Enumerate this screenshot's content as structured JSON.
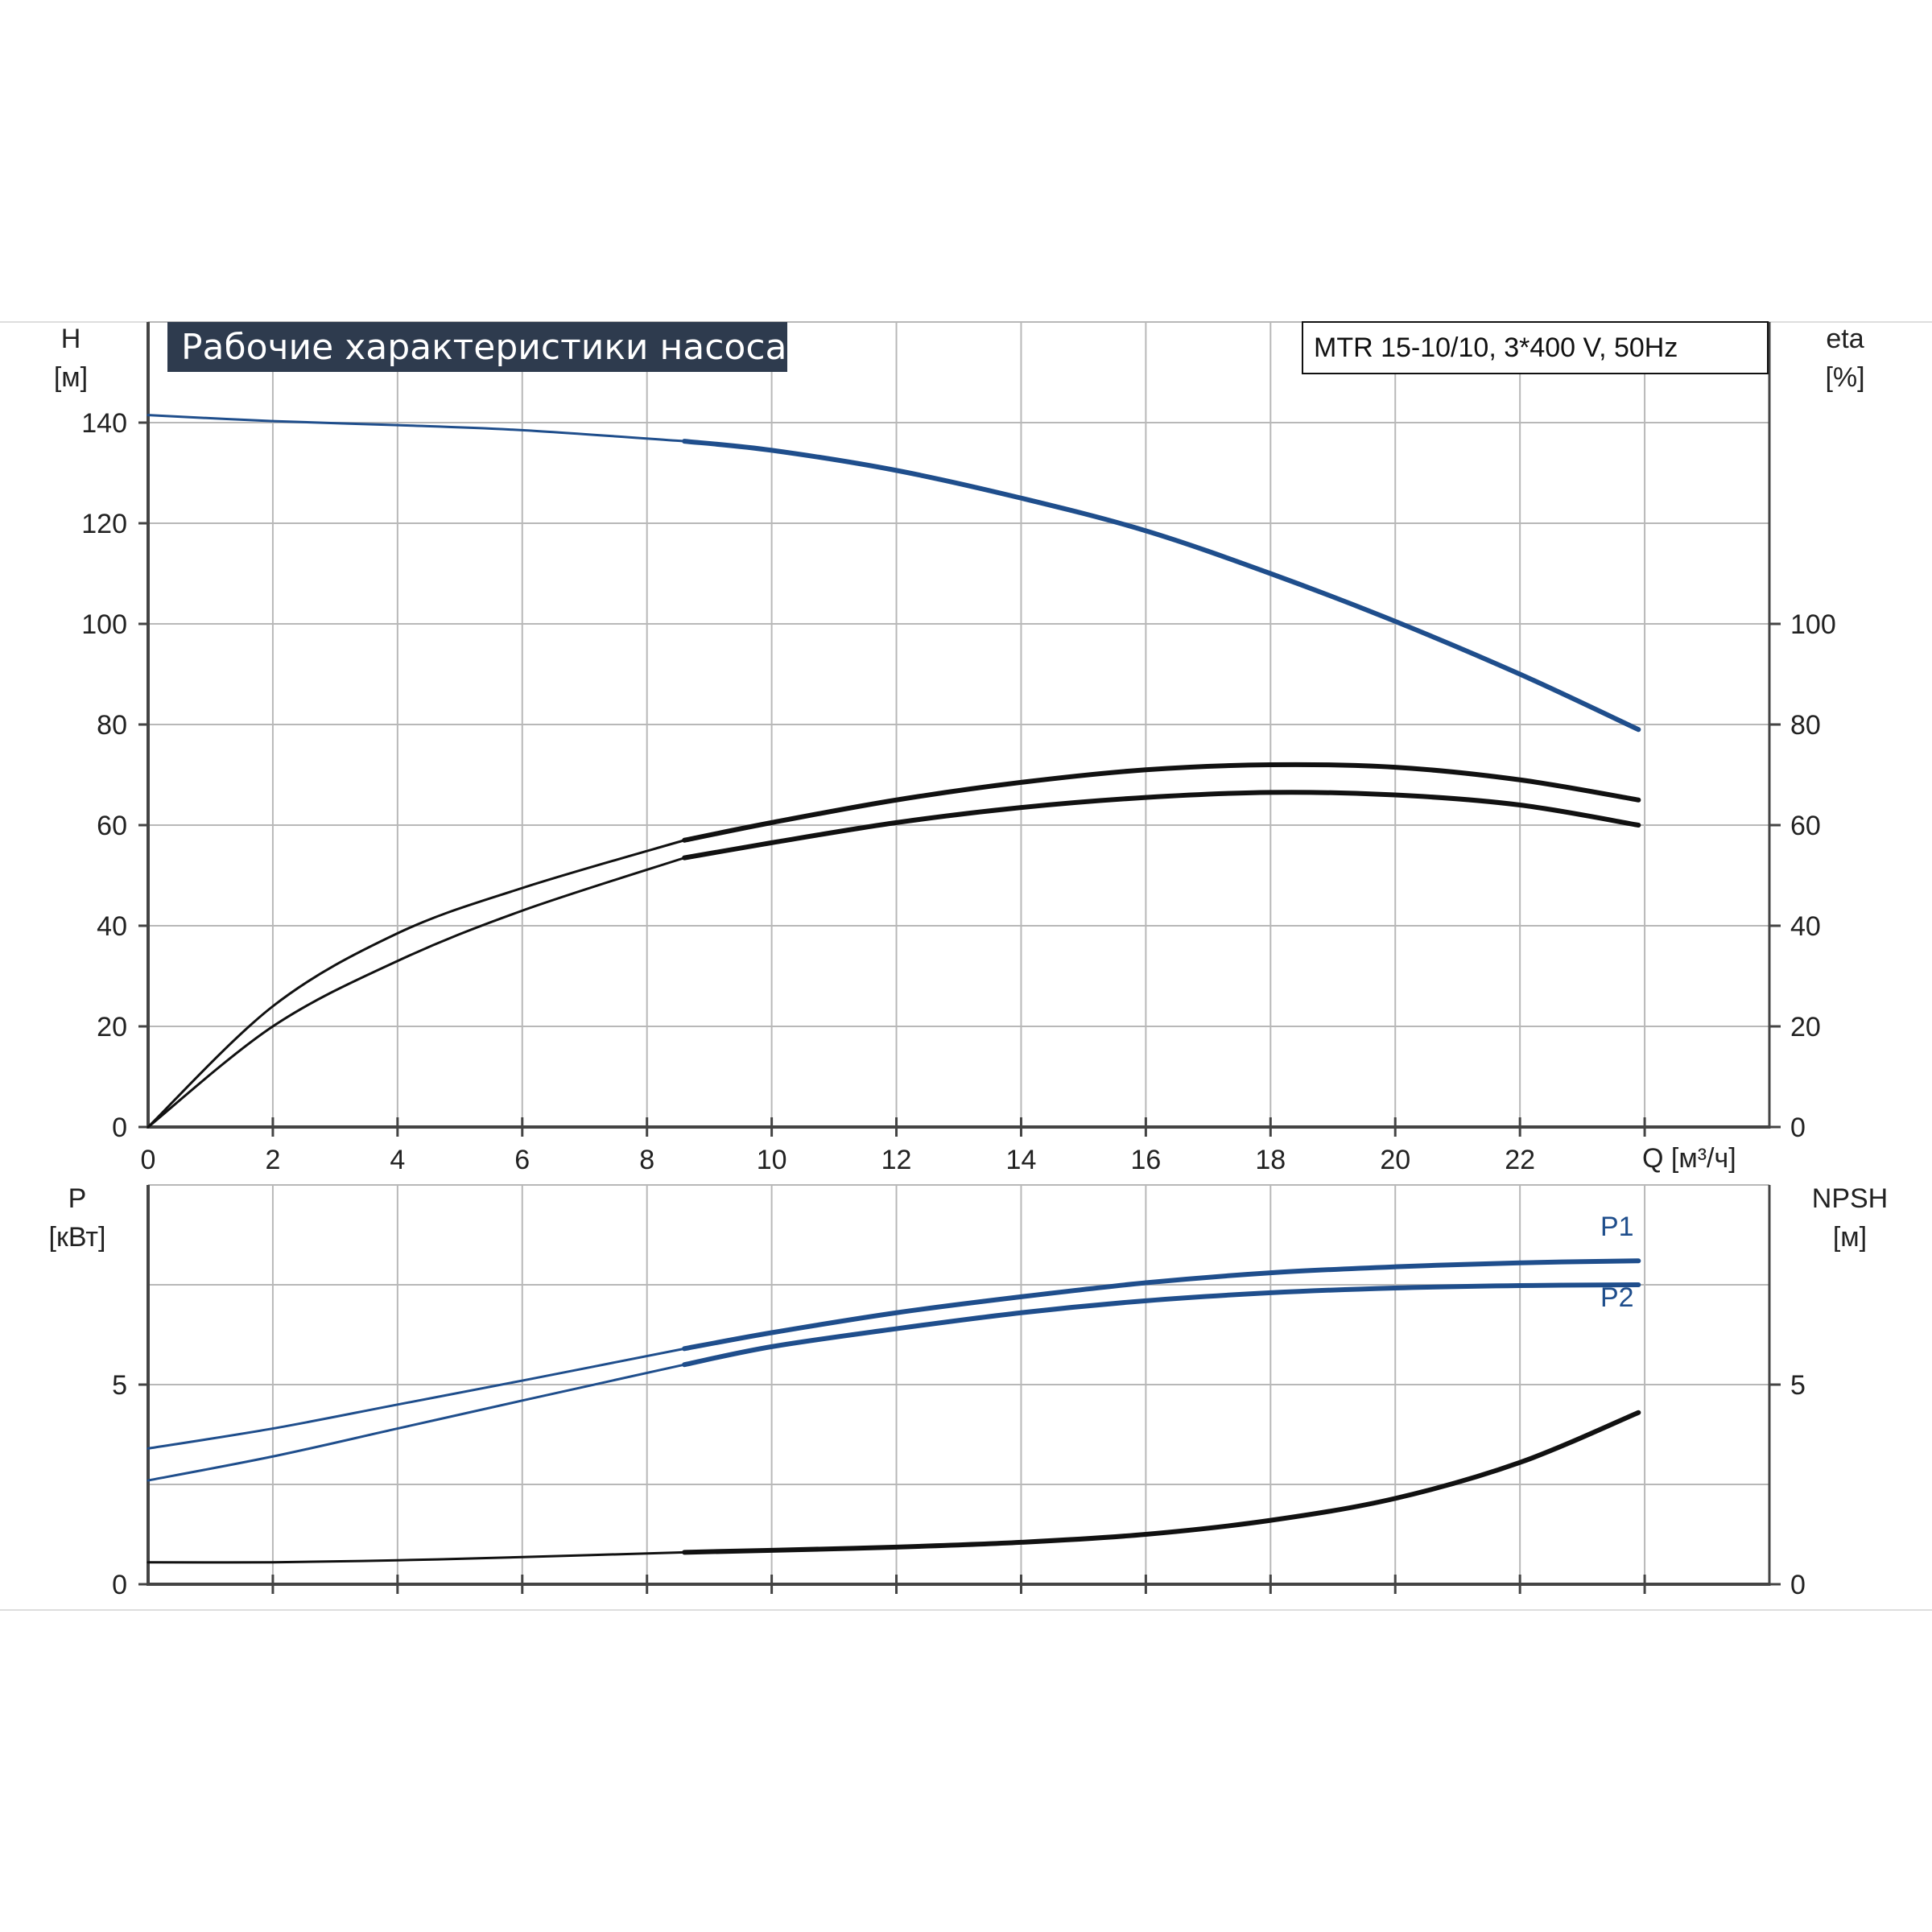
{
  "colors": {
    "blue": "#1f4e8c",
    "black": "#111111",
    "grid": "#b8b8b8",
    "title_bg": "#2e3b4e"
  },
  "chart_data": [
    {
      "id": "top",
      "type": "line",
      "title": "Рабочие характеристики насоса",
      "model_label": "MTR 15-10/10, 3*400 V, 50Hz",
      "y_label": "H",
      "y_unit": "[м]",
      "y2_label": "eta",
      "y2_unit": "[%]",
      "x_label": "Q [м³/ч]",
      "xlim": [
        0,
        26
      ],
      "ylim": [
        0,
        160
      ],
      "x_ticks": [
        0,
        2,
        4,
        6,
        8,
        10,
        12,
        14,
        16,
        18,
        20,
        22
      ],
      "y_ticks": [
        0,
        20,
        40,
        60,
        80,
        100,
        120,
        140
      ],
      "y2_ticks": [
        0,
        20,
        40,
        60,
        80,
        100
      ],
      "grid": true,
      "bold_from_x": 8.6,
      "series": [
        {
          "color": "blue",
          "x": [
            0,
            2,
            4,
            6,
            8.6,
            10,
            12,
            14,
            16,
            18,
            20,
            22,
            23.9
          ],
          "y": [
            141.5,
            140.3,
            139.5,
            138.5,
            136.3,
            134.5,
            130.5,
            125,
            118.5,
            110,
            100.5,
            90,
            79
          ]
        },
        {
          "color": "black",
          "x": [
            0,
            2,
            4,
            6,
            8.6,
            10,
            12,
            14,
            16,
            18,
            20,
            22,
            23.9
          ],
          "y": [
            0,
            24,
            38.5,
            47.5,
            57,
            60.5,
            65,
            68.5,
            71,
            72,
            71.5,
            69,
            65
          ]
        },
        {
          "color": "black",
          "x": [
            0,
            2,
            4,
            6,
            8.6,
            10,
            12,
            14,
            16,
            18,
            20,
            22,
            23.9
          ],
          "y": [
            0,
            20,
            33,
            43,
            53.5,
            56.5,
            60.5,
            63.5,
            65.5,
            66.5,
            66,
            64,
            60
          ]
        }
      ]
    },
    {
      "id": "bottom",
      "type": "line",
      "y_label": "P",
      "y_unit": "[кВт]",
      "y2_label": "NPSH",
      "y2_unit": "[м]",
      "xlim": [
        0,
        26
      ],
      "ylim": [
        0,
        10
      ],
      "y_ticks": [
        0,
        5
      ],
      "y2_ticks": [
        0,
        5
      ],
      "grid": true,
      "bold_from_x": 8.6,
      "series": [
        {
          "name": "P1",
          "color": "blue",
          "x": [
            0,
            2,
            4,
            6,
            8.6,
            10,
            12,
            14,
            16,
            18,
            20,
            22,
            23.9
          ],
          "y": [
            3.4,
            3.9,
            4.5,
            5.1,
            5.9,
            6.3,
            6.8,
            7.2,
            7.55,
            7.8,
            7.95,
            8.05,
            8.1
          ]
        },
        {
          "name": "P2",
          "color": "blue",
          "x": [
            0,
            2,
            4,
            6,
            8.6,
            10,
            12,
            14,
            16,
            18,
            20,
            22,
            23.9
          ],
          "y": [
            2.6,
            3.2,
            3.9,
            4.6,
            5.5,
            5.95,
            6.4,
            6.8,
            7.1,
            7.3,
            7.42,
            7.48,
            7.5
          ]
        },
        {
          "color": "black",
          "x": [
            0,
            2,
            4,
            6,
            8.6,
            10,
            12,
            14,
            16,
            18,
            20,
            22,
            23.9
          ],
          "y": [
            0.55,
            0.55,
            0.6,
            0.68,
            0.8,
            0.85,
            0.93,
            1.05,
            1.25,
            1.6,
            2.15,
            3.05,
            4.3
          ]
        }
      ]
    }
  ]
}
